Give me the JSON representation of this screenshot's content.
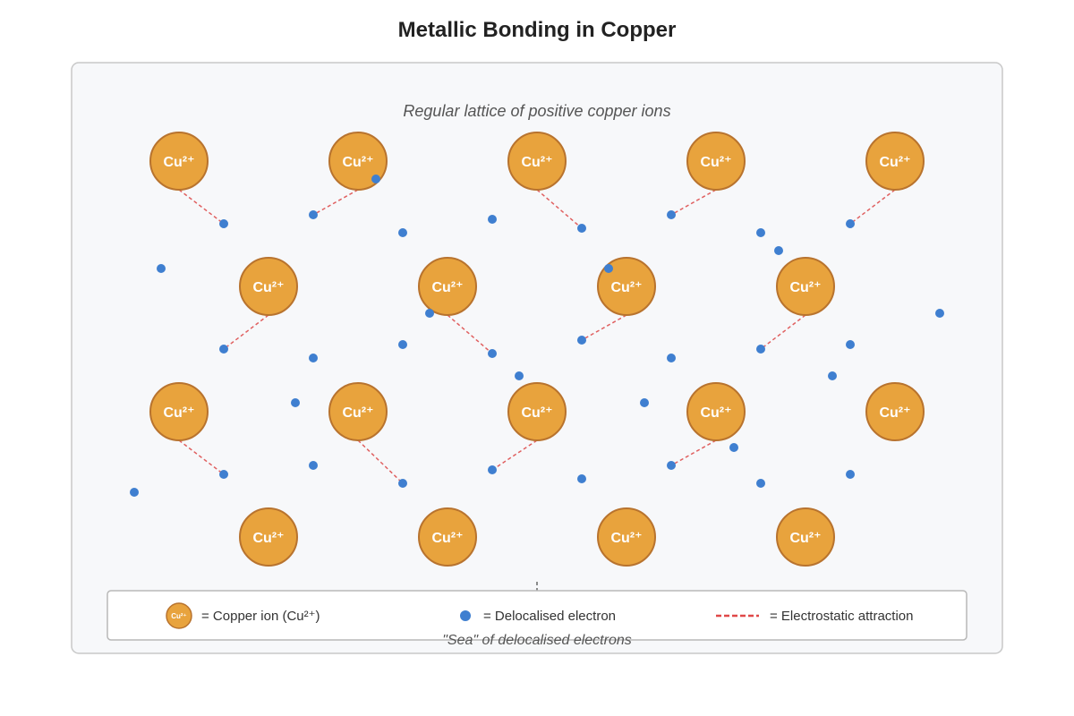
{
  "title": "Metallic Bonding in Copper",
  "subtitle": "Regular lattice of positive copper ions",
  "ion_label": "Cu²⁺",
  "ion_label_small": "Cu²⁺",
  "sea_label": "\"Sea\" of delocalised electrons",
  "legend": {
    "ion": "= Copper ion (Cu²⁺)",
    "electron": "= Delocalised electron",
    "attraction": "= Electrostatic attraction"
  },
  "colors": {
    "ion_fill": "#e8a33d",
    "ion_stroke": "#b8732e",
    "electron": "#3f7fd0",
    "attraction": "#e06060",
    "panel_bg": "#f7f8fa",
    "panel_border": "#c8c8c8"
  }
}
